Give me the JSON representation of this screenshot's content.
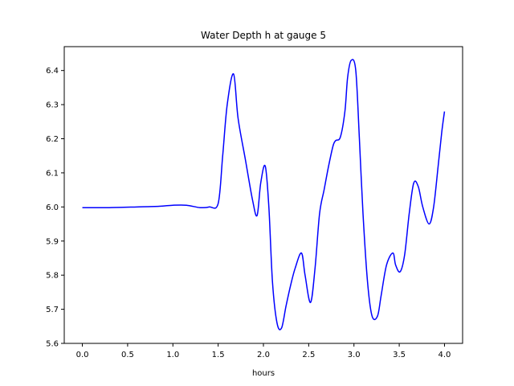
{
  "chart_data": {
    "type": "line",
    "title": "Water Depth h at gauge 5",
    "xlabel": "hours",
    "ylabel": "",
    "xlim": [
      -0.2,
      4.2
    ],
    "ylim": [
      5.6,
      6.47
    ],
    "xticks": [
      0.0,
      0.5,
      1.0,
      1.5,
      2.0,
      2.5,
      3.0,
      3.5,
      4.0
    ],
    "xtick_labels": [
      "0.0",
      "0.5",
      "1.0",
      "1.5",
      "2.0",
      "2.5",
      "3.0",
      "3.5",
      "4.0"
    ],
    "yticks": [
      5.6,
      5.7,
      5.8,
      5.9,
      6.0,
      6.1,
      6.2,
      6.3,
      6.4
    ],
    "ytick_labels": [
      "5.6",
      "5.7",
      "5.8",
      "5.9",
      "6.0",
      "6.1",
      "6.2",
      "6.3",
      "6.4"
    ],
    "grid": false,
    "legend": "none",
    "series": [
      {
        "color": "#0000ff",
        "x": [
          0.0,
          0.3,
          0.6,
          0.85,
          1.0,
          1.15,
          1.3,
          1.4,
          1.5,
          1.55,
          1.6,
          1.67,
          1.72,
          1.8,
          1.88,
          1.93,
          1.97,
          2.02,
          2.06,
          2.1,
          2.15,
          2.2,
          2.25,
          2.3,
          2.35,
          2.42,
          2.46,
          2.52,
          2.57,
          2.62,
          2.67,
          2.72,
          2.77,
          2.8,
          2.85,
          2.9,
          2.93,
          2.97,
          3.02,
          3.06,
          3.1,
          3.15,
          3.2,
          3.26,
          3.3,
          3.36,
          3.43,
          3.46,
          3.51,
          3.56,
          3.61,
          3.66,
          3.71,
          3.76,
          3.83,
          3.88,
          3.93,
          3.97,
          4.0
        ],
        "y": [
          5.998,
          5.998,
          6.0,
          6.002,
          6.005,
          6.005,
          5.998,
          6.0,
          6.01,
          6.15,
          6.3,
          6.39,
          6.26,
          6.14,
          6.02,
          5.975,
          6.07,
          6.12,
          6.0,
          5.78,
          5.66,
          5.645,
          5.71,
          5.77,
          5.82,
          5.865,
          5.8,
          5.72,
          5.82,
          5.98,
          6.05,
          6.12,
          6.18,
          6.195,
          6.205,
          6.28,
          6.38,
          6.43,
          6.4,
          6.2,
          5.98,
          5.78,
          5.68,
          5.68,
          5.74,
          5.83,
          5.865,
          5.83,
          5.81,
          5.86,
          5.98,
          6.07,
          6.06,
          6.0,
          5.95,
          6.0,
          6.12,
          6.22,
          6.28
        ]
      }
    ]
  }
}
